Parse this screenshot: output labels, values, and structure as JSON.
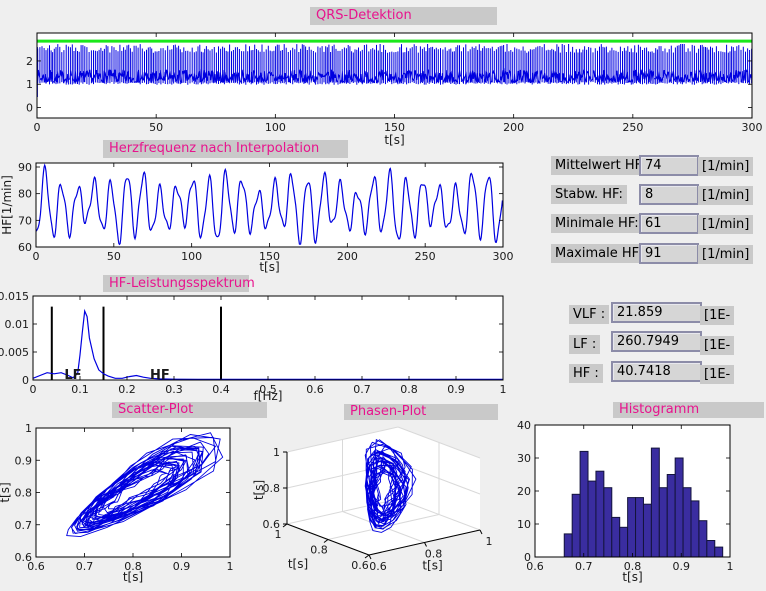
{
  "figure": {
    "background": "#efefef",
    "panel_label_bg": "#c9c9c9",
    "title_color": "#e8138d",
    "axes_bg": "#ffffff",
    "line_color": "#0000e0",
    "threshold_color": "#1ae81a",
    "hist_fill": "#3a2da0",
    "annotation_color": "#ee4444",
    "field_bg": "#d6d6d6",
    "field_border": "#8c8ca8"
  },
  "chart_data": [
    {
      "id": "qrs",
      "type": "line",
      "title": "QRS-Detektion",
      "xlabel": "t[s]",
      "xlim": [
        0,
        300
      ],
      "ylim": [
        -0.45,
        3.2
      ],
      "xticks": [
        "0",
        "50",
        "100",
        "150",
        "200",
        "250",
        "300"
      ],
      "yticks": [
        "0",
        "1",
        "2"
      ],
      "threshold": {
        "y": 2.85
      },
      "signal_summary": {
        "kind": "ECG with detected R-peaks",
        "duration_s": 300,
        "beat_rate_per_min": 75,
        "baseline_band": [
          1.05,
          1.75
        ],
        "r_peak_amplitude": [
          2.3,
          2.75
        ]
      }
    },
    {
      "id": "hf",
      "type": "line",
      "title": "Herzfrequenz nach Interpolation",
      "xlabel": "t[s]",
      "ylabel": "HF[1/min]",
      "xlim": [
        0,
        300
      ],
      "ylim": [
        60,
        91.5
      ],
      "xticks": [
        "0",
        "50",
        "100",
        "150",
        "200",
        "250",
        "300"
      ],
      "yticks": [
        "60",
        "70",
        "80",
        "90"
      ],
      "series_summary": {
        "mean": 74,
        "std": 8,
        "min": 61,
        "max": 91,
        "oscillation_period_s": 10.5
      }
    },
    {
      "id": "spectrum",
      "type": "line",
      "title": "HF-Leistungsspektrum",
      "xlabel": "f[Hz]",
      "xlim": [
        0,
        1
      ],
      "ylim": [
        0,
        0.015
      ],
      "xticks": [
        "0",
        "0.1",
        "0.2",
        "0.3",
        "0.4",
        "0.5",
        "0.6",
        "0.7",
        "0.8",
        "0.9",
        "1"
      ],
      "yticks": [
        "0",
        "0.005",
        "0.01",
        "0.015"
      ],
      "points": [
        [
          0,
          0.0003
        ],
        [
          0.015,
          0.0008
        ],
        [
          0.03,
          0.0013
        ],
        [
          0.045,
          0.0011
        ],
        [
          0.06,
          0.0013
        ],
        [
          0.075,
          0.0008
        ],
        [
          0.085,
          0.0004
        ],
        [
          0.095,
          0.0012
        ],
        [
          0.1,
          0.0045
        ],
        [
          0.105,
          0.0085
        ],
        [
          0.11,
          0.0123
        ],
        [
          0.115,
          0.0113
        ],
        [
          0.12,
          0.0075
        ],
        [
          0.13,
          0.0038
        ],
        [
          0.14,
          0.0018
        ],
        [
          0.15,
          0.0011
        ],
        [
          0.16,
          0.0007
        ],
        [
          0.175,
          0.0003
        ],
        [
          0.19,
          0.0003
        ],
        [
          0.205,
          0.0006
        ],
        [
          0.22,
          0.0008
        ],
        [
          0.235,
          0.0005
        ],
        [
          0.25,
          0.0003
        ],
        [
          0.27,
          0.0002
        ],
        [
          0.3,
          0.00015
        ],
        [
          0.35,
          0.0001
        ],
        [
          0.45,
          0.0001
        ],
        [
          0.6,
          0.0001
        ],
        [
          0.8,
          0.0001
        ],
        [
          1,
          0.00012
        ]
      ],
      "band_boundary_lines": [
        0.04,
        0.15,
        0.4
      ],
      "annotations": [
        {
          "text": "LF",
          "x": 0.085
        },
        {
          "text": "HF",
          "x": 0.27
        }
      ]
    },
    {
      "id": "scatter",
      "type": "scatter",
      "title": "Scatter-Plot",
      "xlabel": "t[s]",
      "ylabel": "t[s]",
      "xlim": [
        0.6,
        1
      ],
      "ylim": [
        0.6,
        1
      ],
      "xticks": [
        "0.6",
        "0.7",
        "0.8",
        "0.9",
        "1"
      ],
      "yticks": [
        "0.6",
        "0.7",
        "0.8",
        "0.9",
        "1"
      ],
      "series_summary": {
        "kind": "Poincare plot RR(n) vs RR(n+1), points connected",
        "range_s": [
          0.66,
          0.98
        ]
      }
    },
    {
      "id": "phase",
      "type": "line3d",
      "title": "Phasen-Plot",
      "xlabel": "t[s]",
      "ylabel": "t[s]",
      "zlabel": "t[s]",
      "lim": [
        0.6,
        1
      ],
      "xticks": [
        "0.6",
        "0.8",
        "1"
      ],
      "yticks": [
        "1",
        "0.8",
        "0.6"
      ],
      "zticks": [
        "1",
        "0.8",
        "0.6"
      ],
      "series_summary": {
        "kind": "3D phase-space trajectory RR(n), RR(n+1), RR(n+2)"
      }
    },
    {
      "id": "hist",
      "type": "bar",
      "title": "Histogramm",
      "xlabel": "t[s]",
      "xlim": [
        0.6,
        1
      ],
      "ylim": [
        0,
        40
      ],
      "xticks": [
        "0.6",
        "0.7",
        "0.8",
        "0.9",
        "1"
      ],
      "yticks": [
        "0",
        "10",
        "20",
        "30",
        "40"
      ],
      "bin_start": 0.66,
      "bin_width": 0.01625,
      "values": [
        7,
        19,
        32,
        23,
        26,
        21,
        12,
        9,
        18,
        18,
        16,
        33,
        21,
        25,
        30,
        21,
        17,
        11,
        5,
        3
      ]
    }
  ],
  "stats": {
    "rows": [
      {
        "label": "Mittelwert HF:",
        "value": "74",
        "unit": "[1/min]"
      },
      {
        "label": "Stabw. HF:",
        "value": "8",
        "unit": "[1/min]"
      },
      {
        "label": "Minimale HF:",
        "value": "61",
        "unit": "[1/min]"
      },
      {
        "label": "Maximale HF:",
        "value": "91",
        "unit": "[1/min]"
      }
    ]
  },
  "freq_stats": {
    "rows": [
      {
        "label": "VLF :",
        "value": "21.859",
        "unit": "[1E-"
      },
      {
        "label": "LF :",
        "value": "260.7949",
        "unit": "[1E-"
      },
      {
        "label": "HF :",
        "value": "40.7418",
        "unit": "[1E-"
      }
    ]
  }
}
